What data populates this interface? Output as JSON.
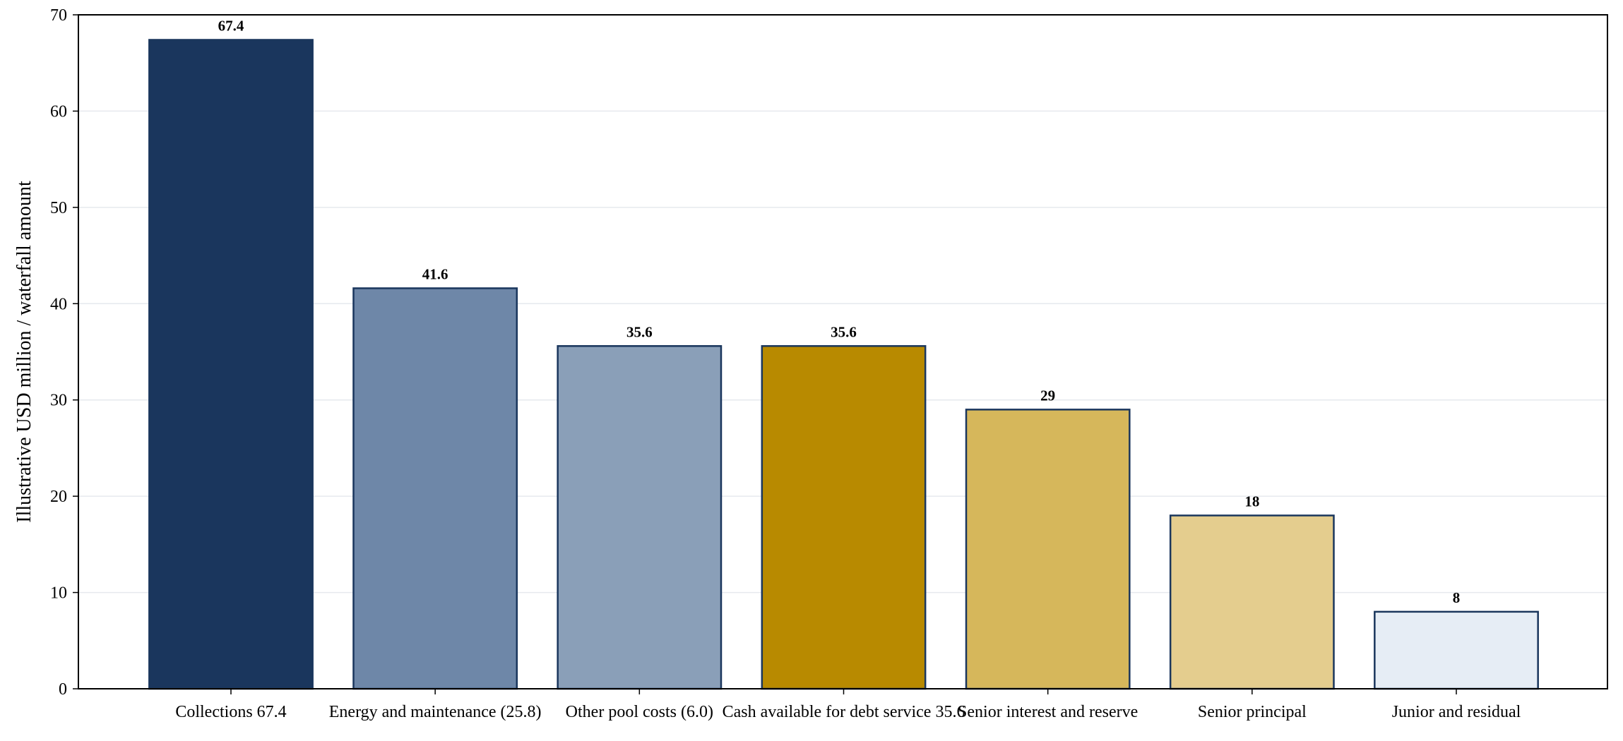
{
  "chart_data": {
    "type": "bar",
    "title": "",
    "xlabel": "",
    "ylabel": "Illustrative USD million / waterfall amount",
    "ylim": [
      0,
      70
    ],
    "yticks": [
      0,
      10,
      20,
      30,
      40,
      50,
      60,
      70
    ],
    "grid": "horizontal",
    "legend": "none",
    "categories": [
      "Collections 67.4",
      "Energy and maintenance (25.8)",
      "Other pool costs (6.0)",
      "Cash available for debt service 35.6",
      "Senior interest and reserve",
      "Senior principal",
      "Junior and residual"
    ],
    "values": [
      67.4,
      41.6,
      35.6,
      35.6,
      29,
      18,
      8
    ],
    "data_labels": [
      "67.4",
      "41.6",
      "35.6",
      "35.6",
      "29",
      "18",
      "8"
    ],
    "colors": [
      "#1a365d",
      "#6e87a8",
      "#8a9fb8",
      "#b88a00",
      "#d6b75b",
      "#e4cd8e",
      "#e6edf5"
    ],
    "edge_color": "#1a365d",
    "grid_color": "#e6e9ee",
    "axis_color": "#000000"
  }
}
